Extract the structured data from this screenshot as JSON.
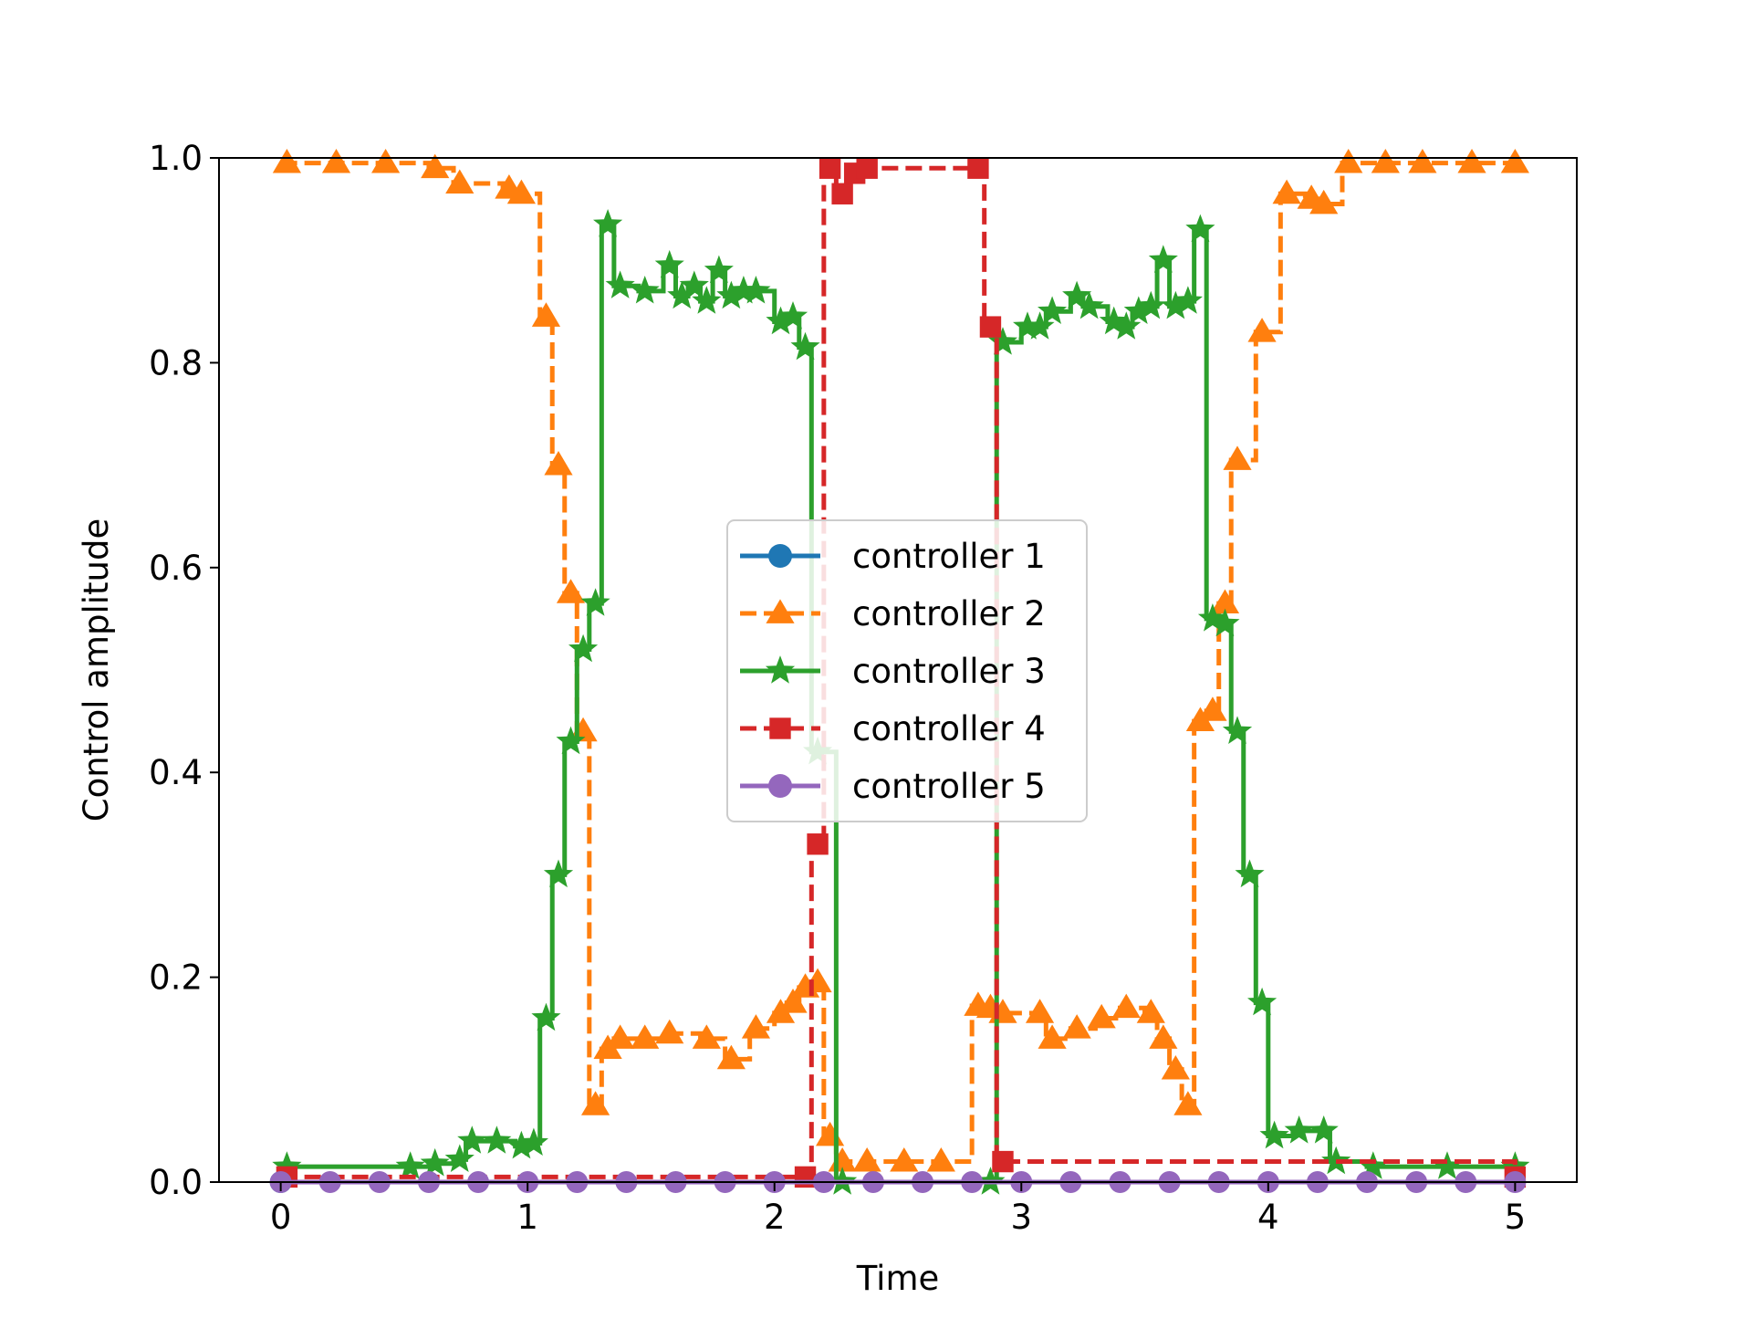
{
  "chart_data": {
    "type": "line",
    "title": "",
    "xlabel": "Time",
    "ylabel": "Control amplitude",
    "xlim": [
      -0.25,
      5.25
    ],
    "ylim": [
      0.0,
      1.0
    ],
    "xticks": [
      "0",
      "1",
      "2",
      "3",
      "4",
      "5"
    ],
    "yticks": [
      "0.0",
      "0.2",
      "0.4",
      "0.6",
      "0.8",
      "1.0"
    ],
    "grid": false,
    "legend_position": "center",
    "step_width": 0.05,
    "series": [
      {
        "name": "controller 1",
        "color": "#1f77b4",
        "linestyle": "solid",
        "marker": "circle",
        "x": [
          0.0,
          0.05
        ],
        "values": [
          0.0,
          0.0
        ]
      },
      {
        "name": "controller 2",
        "color": "#ff7f0e",
        "linestyle": "dashed",
        "marker": "triangle",
        "x": [
          0.0,
          0.2,
          0.4,
          0.6,
          0.7,
          0.9,
          0.95,
          1.05,
          1.1,
          1.15,
          1.2,
          1.25,
          1.3,
          1.35,
          1.45,
          1.55,
          1.7,
          1.8,
          1.9,
          2.0,
          2.05,
          2.1,
          2.15,
          2.2,
          2.25,
          2.35,
          2.5,
          2.65,
          2.8,
          2.85,
          2.9,
          3.05,
          3.1,
          3.2,
          3.3,
          3.4,
          3.5,
          3.55,
          3.6,
          3.65,
          3.7,
          3.75,
          3.8,
          3.85,
          3.95,
          4.05,
          4.15,
          4.2,
          4.3,
          4.45,
          4.6,
          4.8,
          5.0
        ],
        "values": [
          0.995,
          0.995,
          0.995,
          0.99,
          0.975,
          0.97,
          0.965,
          0.845,
          0.7,
          0.575,
          0.44,
          0.075,
          0.13,
          0.14,
          0.14,
          0.145,
          0.14,
          0.12,
          0.15,
          0.165,
          0.175,
          0.19,
          0.195,
          0.045,
          0.02,
          0.02,
          0.02,
          0.02,
          0.172,
          0.17,
          0.165,
          0.165,
          0.14,
          0.15,
          0.16,
          0.17,
          0.165,
          0.14,
          0.11,
          0.075,
          0.45,
          0.46,
          0.565,
          0.705,
          0.83,
          0.965,
          0.96,
          0.955,
          0.995,
          0.995,
          0.995,
          0.995,
          0.995
        ]
      },
      {
        "name": "controller 3",
        "color": "#2ca02c",
        "linestyle": "solid",
        "marker": "star",
        "x": [
          0.0,
          0.5,
          0.6,
          0.7,
          0.75,
          0.85,
          0.95,
          1.0,
          1.05,
          1.1,
          1.15,
          1.2,
          1.25,
          1.3,
          1.35,
          1.45,
          1.55,
          1.6,
          1.65,
          1.7,
          1.75,
          1.8,
          1.85,
          1.9,
          2.0,
          2.05,
          2.1,
          2.15,
          2.25,
          2.85,
          2.9,
          3.0,
          3.05,
          3.1,
          3.2,
          3.25,
          3.35,
          3.4,
          3.45,
          3.5,
          3.55,
          3.6,
          3.65,
          3.7,
          3.75,
          3.8,
          3.85,
          3.9,
          3.95,
          4.0,
          4.1,
          4.2,
          4.25,
          4.4,
          4.7,
          5.0
        ],
        "values": [
          0.015,
          0.015,
          0.018,
          0.022,
          0.04,
          0.04,
          0.035,
          0.038,
          0.16,
          0.3,
          0.43,
          0.52,
          0.565,
          0.935,
          0.875,
          0.87,
          0.895,
          0.865,
          0.875,
          0.86,
          0.89,
          0.865,
          0.87,
          0.87,
          0.84,
          0.845,
          0.815,
          0.42,
          0.0,
          0.0,
          0.82,
          0.835,
          0.835,
          0.85,
          0.865,
          0.855,
          0.84,
          0.835,
          0.85,
          0.855,
          0.9,
          0.855,
          0.86,
          0.93,
          0.55,
          0.545,
          0.44,
          0.3,
          0.175,
          0.045,
          0.05,
          0.05,
          0.02,
          0.015,
          0.015,
          0.015
        ]
      },
      {
        "name": "controller 4",
        "color": "#d62728",
        "linestyle": "dashed",
        "marker": "square",
        "x": [
          0.0,
          2.1,
          2.15,
          2.2,
          2.25,
          2.3,
          2.35,
          2.8,
          2.85,
          2.9,
          5.0
        ],
        "values": [
          0.005,
          0.005,
          0.33,
          0.99,
          0.965,
          0.985,
          0.99,
          0.99,
          0.835,
          0.02,
          0.005
        ]
      },
      {
        "name": "controller 5",
        "color": "#9467bd",
        "linestyle": "solid",
        "marker": "circle",
        "x": [
          0.0,
          5.0
        ],
        "values": [
          0.0,
          0.0
        ]
      }
    ]
  }
}
